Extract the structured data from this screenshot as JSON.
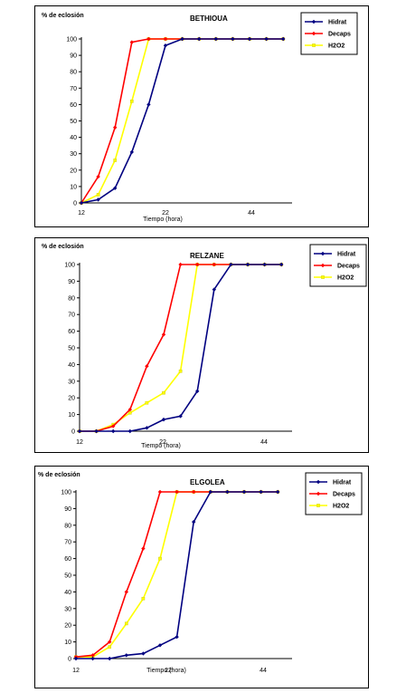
{
  "chart_data": [
    {
      "type": "line",
      "title": "BETHIOUA",
      "ylabel": "% de eclosión",
      "xlabel": "Tiempo (hora)",
      "ylim": [
        0,
        100
      ],
      "yticks": [
        0,
        10,
        20,
        30,
        40,
        50,
        60,
        70,
        80,
        90,
        100
      ],
      "xtick_labels": [
        "12",
        "22",
        "44"
      ],
      "grid": false,
      "legend": "top-right",
      "series": [
        {
          "name": "Hidrat",
          "color": "#000080",
          "marker": "diamond",
          "values": [
            0,
            2,
            9,
            31,
            60,
            96,
            100,
            100,
            100,
            100,
            100,
            100,
            100
          ]
        },
        {
          "name": "Decaps",
          "color": "#ff0000",
          "marker": "diamond",
          "values": [
            0,
            16,
            46,
            98,
            100,
            100,
            100,
            100,
            100,
            100,
            100,
            100,
            100
          ]
        },
        {
          "name": "H2O2",
          "color": "#ffff00",
          "marker": "square",
          "values": [
            0,
            5,
            26,
            62,
            100,
            100,
            100,
            100,
            100,
            100,
            100,
            100,
            100
          ]
        }
      ]
    },
    {
      "type": "line",
      "title": "RELZANE",
      "ylabel": "% de eclosión",
      "xlabel": "Tiempo (hora)",
      "ylim": [
        0,
        100
      ],
      "yticks": [
        0,
        10,
        20,
        30,
        40,
        50,
        60,
        70,
        80,
        90,
        100
      ],
      "xtick_labels": [
        "12",
        "22",
        "44"
      ],
      "grid": false,
      "legend": "top-right",
      "series": [
        {
          "name": "Hidrat",
          "color": "#000080",
          "marker": "diamond",
          "values": [
            0,
            0,
            0,
            0,
            2,
            7,
            9,
            24,
            85,
            100,
            100,
            100,
            100
          ]
        },
        {
          "name": "Decaps",
          "color": "#ff0000",
          "marker": "diamond",
          "values": [
            0,
            0,
            3,
            13,
            39,
            58,
            100,
            100,
            100,
            100,
            100,
            100,
            100
          ]
        },
        {
          "name": "H2O2",
          "color": "#ffff00",
          "marker": "square",
          "values": [
            0,
            0,
            4,
            11,
            17,
            23,
            36,
            100,
            100,
            100,
            100,
            100,
            100
          ]
        }
      ]
    },
    {
      "type": "line",
      "title": "ELGOLEA",
      "ylabel": "% de eclosión",
      "xlabel": "Tiempo (hora)",
      "ylim": [
        0,
        100
      ],
      "yticks": [
        0,
        10,
        20,
        30,
        40,
        50,
        60,
        70,
        80,
        90,
        100
      ],
      "xtick_labels": [
        "12",
        "22",
        "44"
      ],
      "grid": false,
      "legend": "top-right",
      "series": [
        {
          "name": "Hidrat",
          "color": "#000080",
          "marker": "diamond",
          "values": [
            0,
            0,
            0,
            2,
            3,
            8,
            13,
            82,
            100,
            100,
            100,
            100,
            100
          ]
        },
        {
          "name": "Decaps",
          "color": "#ff0000",
          "marker": "diamond",
          "values": [
            1,
            2,
            10,
            40,
            66,
            100,
            100,
            100,
            100,
            100,
            100,
            100,
            100
          ]
        },
        {
          "name": "H2O2",
          "color": "#ffff00",
          "marker": "square",
          "values": [
            1,
            1,
            7,
            21,
            36,
            60,
            100,
            100,
            100,
            100,
            100,
            100,
            100
          ]
        }
      ]
    }
  ]
}
